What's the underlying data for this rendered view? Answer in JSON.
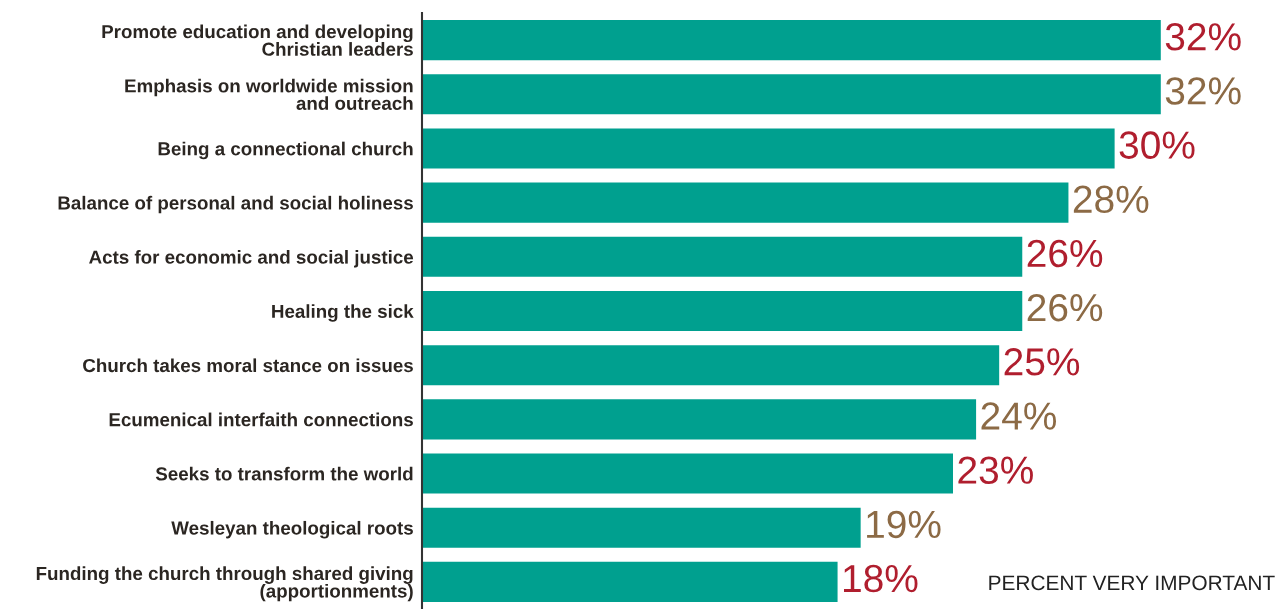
{
  "chart_data": {
    "type": "bar",
    "orientation": "horizontal",
    "categories": [
      "Promote education and developing\nChristian leaders",
      "Emphasis on worldwide mission\nand outreach",
      "Being a connectional church",
      "Balance of personal and social holiness",
      "Acts for economic and social justice",
      "Healing the sick",
      "Church takes moral stance on issues",
      "Ecumenical interfaith connections",
      "Seeks to transform the world",
      "Wesleyan theological roots",
      "Funding the church through shared giving\n(apportionments)"
    ],
    "values": [
      32,
      32,
      30,
      28,
      26,
      26,
      25,
      24,
      23,
      19,
      18
    ],
    "value_labels": [
      "32%",
      "32%",
      "30%",
      "28%",
      "26%",
      "26%",
      "25%",
      "24%",
      "23%",
      "19%",
      "18%"
    ],
    "color": "#00a08f",
    "tick_labels": "y",
    "grid": false,
    "legend": false,
    "annotations": [
      "PERCENT VERY IMPORTANT"
    ]
  }
}
